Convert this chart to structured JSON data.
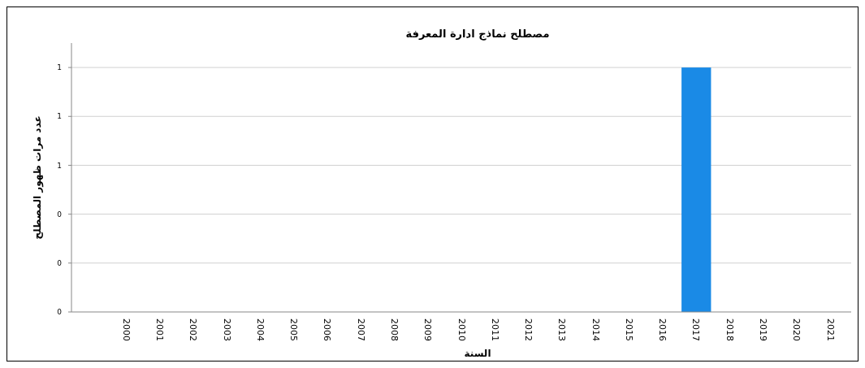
{
  "chart_data": {
    "type": "bar",
    "title": "مصطلح نماذج ادارة المعرفة",
    "xlabel": "السنة",
    "ylabel": "عدد مرات ظهور المصطلح",
    "categories": [
      "2000",
      "2001",
      "2002",
      "2003",
      "2004",
      "2005",
      "2006",
      "2007",
      "2008",
      "2009",
      "2010",
      "2011",
      "2012",
      "2013",
      "2014",
      "2015",
      "2016",
      "2017",
      "2018",
      "2019",
      "2020",
      "2021"
    ],
    "values": [
      0,
      0,
      0,
      0,
      0,
      0,
      0,
      0,
      0,
      0,
      0,
      0,
      0,
      0,
      0,
      0,
      0,
      1,
      0,
      0,
      0,
      0
    ],
    "color": "#1a8ae6",
    "ylim": [
      0,
      1.1
    ],
    "yticks": [
      0,
      {
        "value": 0.2,
        "label": "0"
      },
      {
        "value": 0.4,
        "label": "0"
      },
      {
        "value": 0.6,
        "label": "1"
      },
      {
        "value": 0.8,
        "label": "1"
      },
      {
        "value": 1,
        "label": "1"
      }
    ],
    "grid": "y"
  }
}
